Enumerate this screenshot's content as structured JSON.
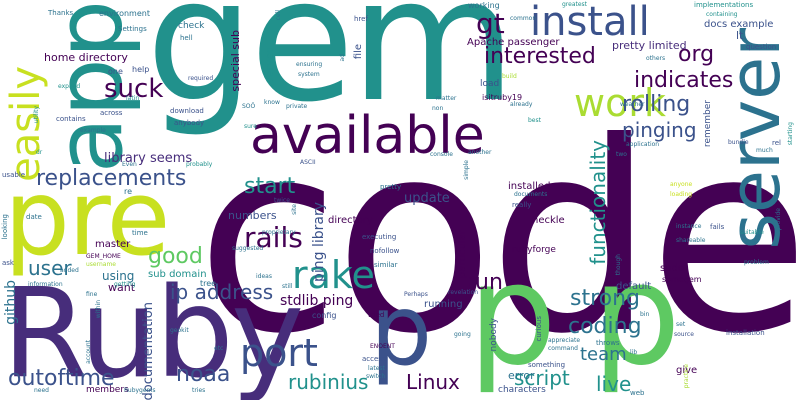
{
  "words": {
    "code": "code",
    "gem": "gem",
    "ruby": "Ruby",
    "p1": "p",
    "p2": "p",
    "p3": "p",
    "app": "app",
    "pre": "pre",
    "server": "server",
    "available": "available",
    "install": "install",
    "easily": "easily",
    "work": "work",
    "rake": "rake",
    "port": "port",
    "rails": "rails",
    "gt": "gt",
    "interested": "interested",
    "org": "org",
    "indicates": "indicates",
    "suck": "suck",
    "rolling": "rolling",
    "pinging": "pinging",
    "replacements": "replacements",
    "library_seems": "library seems",
    "user": "user",
    "good": "good",
    "start": "start",
    "update": "update",
    "ip_address": "ip address",
    "run": "run",
    "strong": "strong",
    "coding": "coding",
    "team": "team",
    "live": "live",
    "script": "script",
    "linux": "Linux",
    "outoftime": "outoftime",
    "noaa": "noaa",
    "rubinius": "rubinius",
    "stdlib_ping": "stdlib ping",
    "functionality": "functionality",
    "ping_library": "ping library",
    "github": "github",
    "documentation": "documentation",
    "apache_passenger": "Apache passenger",
    "pretty_limited": "pretty limited",
    "docs_example": "docs example",
    "home_directory": "home directory",
    "special_sub": "special sub",
    "served": "served",
    "environment": "environment",
    "file": "file",
    "thanks": "Thanks",
    "settings": "Settings",
    "check": "check",
    "hell": "hell",
    "implementations": "implementations",
    "containing": "containing",
    "lt": "lt",
    "question": "question",
    "working": "working",
    "load": "load",
    "isitruby19": "isitruby19",
    "installed": "installed",
    "heckle": "heckle",
    "particular": "particular",
    "directory": "directory",
    "numbers": "numbers",
    "master": "master",
    "using": "using",
    "want": "want",
    "sub_domain": "sub domain",
    "sudo": "sudo",
    "somegem": "somegem",
    "default": "default",
    "nobody": "nobody",
    "error": "error",
    "characters": "characters",
    "members": "members",
    "give": "give",
    "running": "running",
    "rubyforge": "rubyforge",
    "remember": "remember",
    "common": "common",
    "greatest": "greatest",
    "href": "href",
    "one": "one",
    "help": "help",
    "required": "required",
    "expand": "expand",
    "latin": "latin",
    "utility": "utility",
    "contains": "contains",
    "across": "across",
    "download": "download",
    "anybody": "anybody",
    "example": "example",
    "dr": "dr",
    "usable": "usable",
    "even": "Even",
    "probably": "probably",
    "re": "re",
    "date": "date",
    "looking": "looking",
    "time": "time",
    "gem_home": "GEM_HOME",
    "username": "username",
    "ask": "ask",
    "added": "added",
    "information": "information",
    "fine": "fine",
    "getting": "getting",
    "within": "within",
    "tree": "tree",
    "geokit": "geokit",
    "account": "account",
    "etc": "etc",
    "rubygems": "Rubygems",
    "tries": "tries",
    "need": "need",
    "config": "config",
    "enoent": "ENOENT",
    "tried": "tried",
    "latest": "latest",
    "switch": "switch",
    "access": "access",
    "perhaps": "Perhaps",
    "command": "command",
    "throws": "throws",
    "curious": "curious",
    "something": "something",
    "web": "web",
    "bin": "bin",
    "lib": "lib",
    "set": "set",
    "source": "source",
    "installation": "installation",
    "problem": "problem",
    "suitable": "suitable",
    "provide": "provide",
    "shareable": "shareable",
    "instance": "instance",
    "fails": "fails",
    "anyone": "anyone",
    "loading": "loading",
    "though": "though",
    "bundle": "bundle",
    "much": "much",
    "rel": "rel",
    "starting": "starting",
    "others": "others",
    "build": "build",
    "already": "already",
    "application": "application",
    "weather": "weather",
    "two": "two",
    "console": "console",
    "another": "another",
    "best": "best",
    "really": "really",
    "documents": "documents",
    "pretty2": "pretty",
    "executing": "executing",
    "nofollow": "nofollow",
    "similar": "similar",
    "revelation": "revelation",
    "ascii": "ASCII",
    "twice": "twice",
    "proprietary": "proprietary",
    "suggested": "suggested",
    "ideas": "ideas",
    "site": "site",
    "still": "still",
    "simple": "simple",
    "private": "private",
    "know": "know",
    "ensuring": "ensuring",
    "system": "system",
    "non": "non",
    "matter": "matter",
    "soon": "SOÖ",
    "sure": "sure",
    "going": "going",
    "appreciate": "appreciate",
    "cell": "cell",
    "ad": "ad",
    "practice": "practice"
  }
}
